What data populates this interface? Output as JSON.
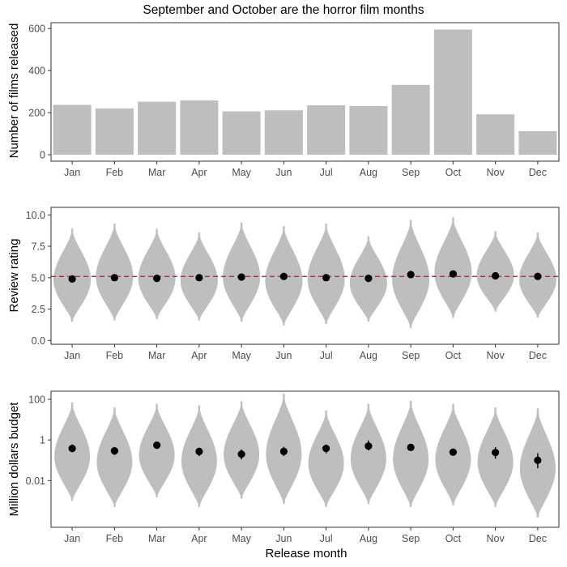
{
  "title": "September and October are the horror film months",
  "xlabel": "Release month",
  "chart_data": [
    {
      "type": "bar",
      "title": "September and October are the horror film months",
      "ylabel": "Number of films released",
      "xlabel": "",
      "categories": [
        "Jan",
        "Feb",
        "Mar",
        "Apr",
        "May",
        "Jun",
        "Jul",
        "Aug",
        "Sep",
        "Oct",
        "Nov",
        "Dec"
      ],
      "values": [
        237,
        220,
        252,
        258,
        206,
        211,
        235,
        231,
        332,
        595,
        192,
        112
      ],
      "ylim": [
        0,
        620
      ],
      "yticks": [
        0,
        200,
        400,
        600
      ],
      "ytick_labels": [
        "0",
        "200",
        "400",
        "600"
      ],
      "bar_color": "#bebebe"
    },
    {
      "type": "violin",
      "ylabel": "Review rating",
      "xlabel": "",
      "categories": [
        "Jan",
        "Feb",
        "Mar",
        "Apr",
        "May",
        "Jun",
        "Jul",
        "Aug",
        "Sep",
        "Oct",
        "Nov",
        "Dec"
      ],
      "ylim": [
        -0.3,
        10.6
      ],
      "yticks": [
        0,
        2.5,
        5,
        7.5,
        10
      ],
      "ytick_labels": [
        "0.0",
        "2.5",
        "5.0",
        "7.5",
        "10.0"
      ],
      "means": [
        4.9,
        5.0,
        4.95,
        5.0,
        5.05,
        5.1,
        5.0,
        4.95,
        5.25,
        5.3,
        5.15,
        5.1
      ],
      "ranges": [
        [
          1.5,
          8.9
        ],
        [
          1.6,
          9.3
        ],
        [
          1.7,
          8.9
        ],
        [
          1.6,
          8.6
        ],
        [
          1.5,
          9.4
        ],
        [
          1.2,
          9.1
        ],
        [
          1.3,
          9.3
        ],
        [
          1.5,
          8.3
        ],
        [
          1.0,
          9.6
        ],
        [
          1.8,
          9.8
        ],
        [
          2.3,
          8.7
        ],
        [
          1.8,
          8.6
        ]
      ],
      "reference_line": 5.1,
      "reference_line_color": "#e41a1c",
      "violin_color": "#bebebe"
    },
    {
      "type": "violin",
      "ylabel": "Million dollars budget",
      "xlabel": "Release month",
      "scale": "log10",
      "categories": [
        "Jan",
        "Feb",
        "Mar",
        "Apr",
        "May",
        "Jun",
        "Jul",
        "Aug",
        "Sep",
        "Oct",
        "Nov",
        "Dec"
      ],
      "ylim": [
        5e-05,
        250
      ],
      "yticks": [
        0.01,
        1,
        100
      ],
      "ytick_labels": [
        "0.01",
        "1",
        "100"
      ],
      "means": [
        0.38,
        0.29,
        0.55,
        0.27,
        0.2,
        0.27,
        0.38,
        0.5,
        0.43,
        0.25,
        0.24,
        0.1
      ],
      "error_bars": [
        [
          0.25,
          0.6
        ],
        [
          0.18,
          0.45
        ],
        [
          0.38,
          0.8
        ],
        [
          0.16,
          0.42
        ],
        [
          0.11,
          0.34
        ],
        [
          0.16,
          0.46
        ],
        [
          0.22,
          0.6
        ],
        [
          0.3,
          0.95
        ],
        [
          0.32,
          0.58
        ],
        [
          0.2,
          0.33
        ],
        [
          0.12,
          0.44
        ],
        [
          0.04,
          0.22
        ]
      ],
      "ranges": [
        [
          0.001,
          70
        ],
        [
          0.0005,
          40
        ],
        [
          0.0015,
          60
        ],
        [
          0.0005,
          50
        ],
        [
          0.0013,
          80
        ],
        [
          0.0007,
          190
        ],
        [
          0.0005,
          28
        ],
        [
          0.0007,
          60
        ],
        [
          0.0005,
          85
        ],
        [
          0.0006,
          60
        ],
        [
          0.0005,
          40
        ],
        [
          0.00015,
          35
        ]
      ],
      "violin_color": "#bebebe"
    }
  ]
}
